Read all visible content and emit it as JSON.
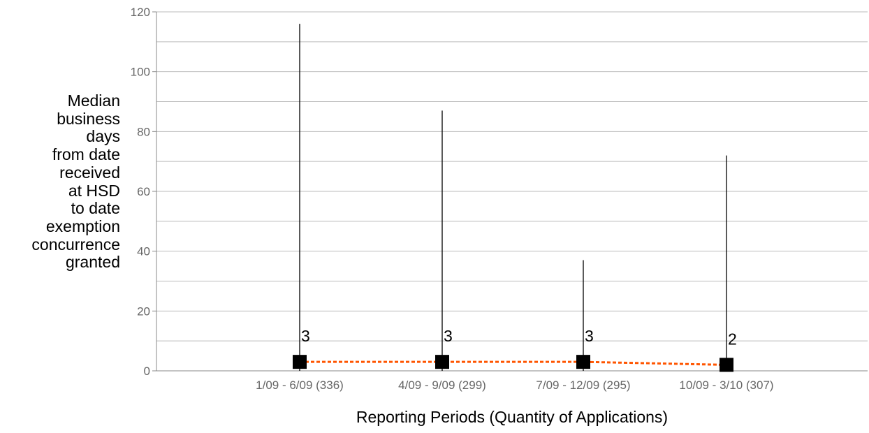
{
  "chart_data": {
    "type": "line",
    "title": "",
    "xlabel": "Reporting Periods (Quantity of Applications)",
    "ylabel": "Median business days from date received at HSD to date exemption concurrence granted",
    "ylabel_lines": [
      "Median",
      "business",
      "days",
      "from date",
      "received",
      "at HSD",
      "to date",
      "exemption",
      "concurrence",
      "granted"
    ],
    "categories": [
      "1/09 - 6/09 (336)",
      "4/09 - 9/09 (299)",
      "7/09 - 12/09 (295)",
      "10/09 - 3/10 (307)"
    ],
    "series": [
      {
        "values": [
          3,
          3,
          3,
          2
        ],
        "data_labels": [
          "3",
          "3",
          "3",
          "2"
        ],
        "high": [
          116,
          87,
          37,
          72
        ],
        "low": [
          0,
          0,
          0,
          0
        ],
        "marker": "square",
        "line_style": "dashed"
      }
    ],
    "ylim": [
      0,
      120
    ],
    "yticks": [
      0,
      20,
      40,
      60,
      80,
      100,
      120
    ],
    "ytick_labels": [
      "0",
      "20",
      "40",
      "60",
      "80",
      "100",
      "120"
    ],
    "minor_gridlines": [
      10,
      30,
      50,
      70,
      90,
      110
    ],
    "grid": true,
    "legend": "none",
    "colors": {
      "line": "#ff5500",
      "marker": "#000000",
      "whisker": "#000000",
      "grid": "#bbbbbb",
      "axis": "#888888",
      "tick_text": "#666666"
    }
  }
}
